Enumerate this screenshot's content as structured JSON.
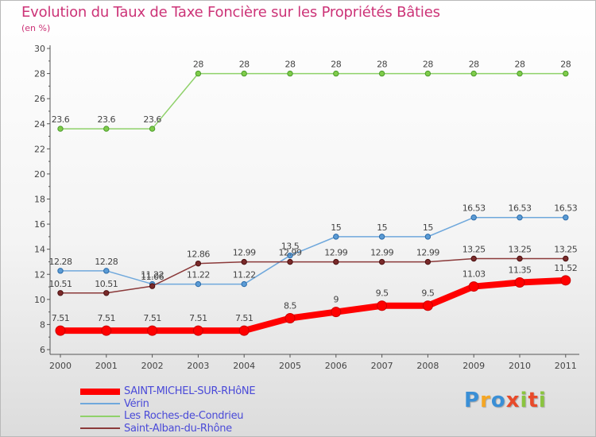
{
  "header": {
    "title": "Evolution du Taux de Taxe Foncière sur les Propriétés Bâties",
    "subtitle": "(en %)"
  },
  "colors": {
    "title": "#cc3377",
    "axis": "#555555",
    "legend_text": "#4a4ad8"
  },
  "logo": {
    "letters": [
      "P",
      "r",
      "o",
      "x",
      "i",
      "t",
      "i"
    ],
    "colors": [
      "#3a8fd6",
      "#f5a623",
      "#3a8fd6",
      "#e84a2a",
      "#8ac43f",
      "#e84a2a",
      "#8ac43f"
    ]
  },
  "chart_data": {
    "type": "line",
    "title": "Evolution du Taux de Taxe Foncière sur les Propriétés Bâties",
    "ylabel": "(en %)",
    "xlabel": "",
    "x": [
      "2000",
      "2001",
      "2002",
      "2003",
      "2004",
      "2005",
      "2006",
      "2007",
      "2008",
      "2009",
      "2010",
      "2011"
    ],
    "ylim": [
      6,
      30
    ],
    "yticks": [
      6,
      8,
      10,
      12,
      14,
      16,
      18,
      20,
      22,
      24,
      26,
      28,
      30
    ],
    "grid": false,
    "legend_position": "bottom-left",
    "series": [
      {
        "name": "Les Roches-de-Condrieu",
        "color": "#8fd16a",
        "marker_fill": "#7fcc4a",
        "marker_stroke": "#4a9a2a",
        "values": [
          23.6,
          23.6,
          23.6,
          28,
          28,
          28,
          28,
          28,
          28,
          28,
          28,
          28
        ],
        "labels": [
          "23.6",
          "23.6",
          "23.6",
          "28",
          "28",
          "28",
          "28",
          "28",
          "28",
          "28",
          "28",
          "28"
        ]
      },
      {
        "name": "Vérin",
        "color": "#6fa8dc",
        "marker_fill": "#5b9bd5",
        "marker_stroke": "#2a6aa8",
        "values": [
          12.28,
          12.28,
          11.22,
          11.22,
          11.22,
          13.5,
          15,
          15,
          15,
          16.53,
          16.53,
          16.53
        ],
        "labels": [
          "12.28",
          "12.28",
          "11.22",
          "11.22",
          "11.22",
          "13.5",
          "15",
          "15",
          "15",
          "16.53",
          "16.53",
          "16.53"
        ]
      },
      {
        "name": "Saint-Alban-du-Rhône",
        "color": "#8b3a3a",
        "marker_fill": "#7a2a2a",
        "marker_stroke": "#4a1010",
        "values": [
          10.51,
          10.51,
          11.06,
          12.86,
          12.99,
          12.99,
          12.99,
          12.99,
          12.99,
          13.25,
          13.25,
          13.25
        ],
        "labels": [
          "10.51",
          "10.51",
          "11.06",
          "12.86",
          "12.99",
          "12.99",
          "12.99",
          "12.99",
          "12.99",
          "13.25",
          "13.25",
          "13.25"
        ]
      },
      {
        "name": "SAINT-MICHEL-SUR-RHôNE",
        "color": "#ff0000",
        "marker_fill": "#ff0000",
        "marker_stroke": "#cc0000",
        "values": [
          7.51,
          7.51,
          7.51,
          7.51,
          7.51,
          8.5,
          9,
          9.5,
          9.5,
          11.03,
          11.35,
          11.52
        ],
        "labels": [
          "7.51",
          "7.51",
          "7.51",
          "7.51",
          "7.51",
          "8.5",
          "9",
          "9.5",
          "9.5",
          "11.03",
          "11.35",
          "11.52"
        ]
      }
    ],
    "legend_order": [
      "SAINT-MICHEL-SUR-RHôNE",
      "Vérin",
      "Les Roches-de-Condrieu",
      "Saint-Alban-du-Rhône"
    ]
  }
}
